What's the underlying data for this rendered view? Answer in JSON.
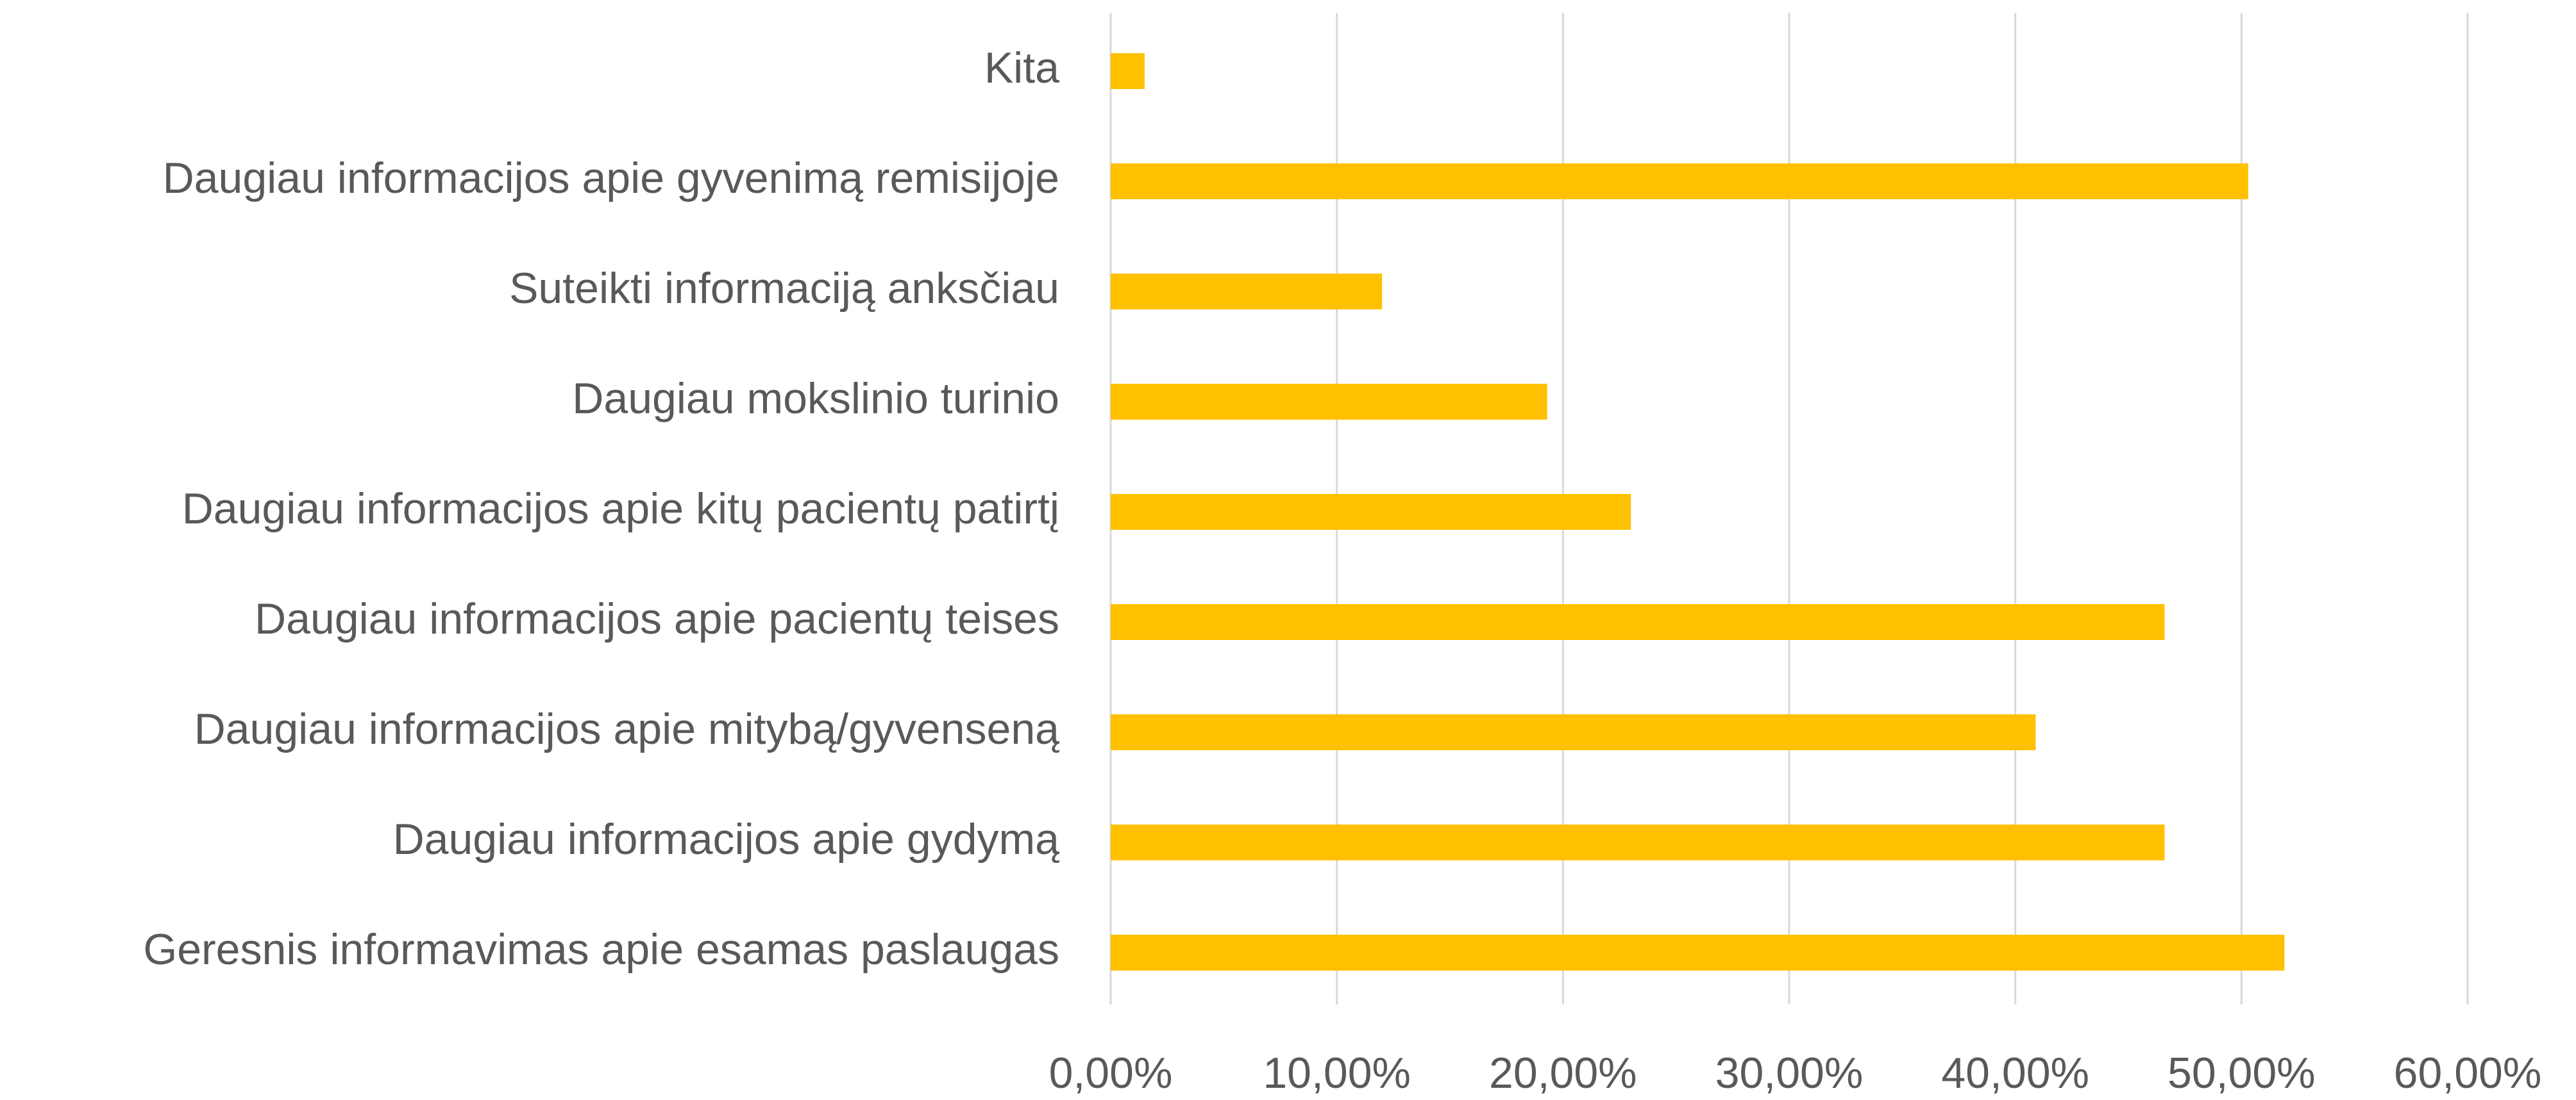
{
  "chart_data": {
    "type": "bar",
    "orientation": "horizontal",
    "categories": [
      "Kita",
      "Daugiau informacijos apie gyvenimą remisijoje",
      "Suteikti informaciją anksčiau",
      "Daugiau mokslinio turinio",
      "Daugiau informacijos  apie kitų pacientų patirtį",
      "Daugiau informacijos apie pacientų teises",
      "Daugiau informacijos apie mitybą/gyvenseną",
      "Daugiau informacijos apie gydymą",
      "Geresnis informavimas apie esamas paslaugas"
    ],
    "values": [
      1.5,
      50.3,
      12.0,
      19.3,
      23.0,
      46.6,
      40.9,
      46.6,
      51.9
    ],
    "color": "#FFC000",
    "xlim": [
      0,
      60
    ],
    "xticks": [
      {
        "value": 0,
        "label": "0,00%"
      },
      {
        "value": 10,
        "label": "10,00%"
      },
      {
        "value": 20,
        "label": "20,00%"
      },
      {
        "value": 30,
        "label": "30,00%"
      },
      {
        "value": 40,
        "label": "40,00%"
      },
      {
        "value": 50,
        "label": "50,00%"
      },
      {
        "value": 60,
        "label": "60,00%"
      }
    ],
    "grid": true
  }
}
